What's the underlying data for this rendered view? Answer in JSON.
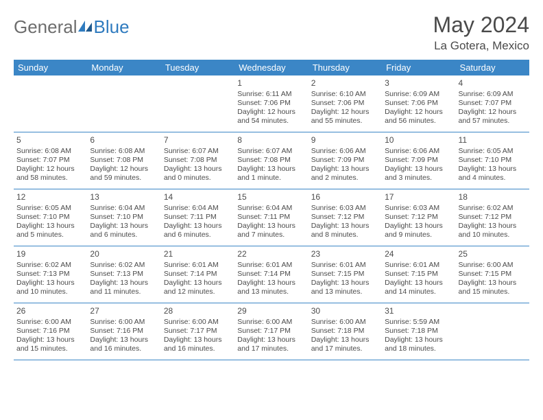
{
  "colors": {
    "header_bg": "#3b86c6",
    "header_text": "#ffffff",
    "border": "#3b86c6",
    "text": "#4a4a4a",
    "logo_gray": "#6d6d6d",
    "logo_blue": "#2f7bbf",
    "background": "#ffffff"
  },
  "typography": {
    "title_fontsize": 32,
    "location_fontsize": 17,
    "dow_fontsize": 13,
    "daynum_fontsize": 12,
    "body_fontsize": 10.5
  },
  "logo": {
    "text1": "General",
    "text2": "Blue"
  },
  "title": "May 2024",
  "location": "La Gotera, Mexico",
  "dow": [
    "Sunday",
    "Monday",
    "Tuesday",
    "Wednesday",
    "Thursday",
    "Friday",
    "Saturday"
  ],
  "weeks": [
    [
      {
        "n": "",
        "lines": []
      },
      {
        "n": "",
        "lines": []
      },
      {
        "n": "",
        "lines": []
      },
      {
        "n": "1",
        "lines": [
          "Sunrise: 6:11 AM",
          "Sunset: 7:06 PM",
          "Daylight: 12 hours and 54 minutes."
        ]
      },
      {
        "n": "2",
        "lines": [
          "Sunrise: 6:10 AM",
          "Sunset: 7:06 PM",
          "Daylight: 12 hours and 55 minutes."
        ]
      },
      {
        "n": "3",
        "lines": [
          "Sunrise: 6:09 AM",
          "Sunset: 7:06 PM",
          "Daylight: 12 hours and 56 minutes."
        ]
      },
      {
        "n": "4",
        "lines": [
          "Sunrise: 6:09 AM",
          "Sunset: 7:07 PM",
          "Daylight: 12 hours and 57 minutes."
        ]
      }
    ],
    [
      {
        "n": "5",
        "lines": [
          "Sunrise: 6:08 AM",
          "Sunset: 7:07 PM",
          "Daylight: 12 hours and 58 minutes."
        ]
      },
      {
        "n": "6",
        "lines": [
          "Sunrise: 6:08 AM",
          "Sunset: 7:08 PM",
          "Daylight: 12 hours and 59 minutes."
        ]
      },
      {
        "n": "7",
        "lines": [
          "Sunrise: 6:07 AM",
          "Sunset: 7:08 PM",
          "Daylight: 13 hours and 0 minutes."
        ]
      },
      {
        "n": "8",
        "lines": [
          "Sunrise: 6:07 AM",
          "Sunset: 7:08 PM",
          "Daylight: 13 hours and 1 minute."
        ]
      },
      {
        "n": "9",
        "lines": [
          "Sunrise: 6:06 AM",
          "Sunset: 7:09 PM",
          "Daylight: 13 hours and 2 minutes."
        ]
      },
      {
        "n": "10",
        "lines": [
          "Sunrise: 6:06 AM",
          "Sunset: 7:09 PM",
          "Daylight: 13 hours and 3 minutes."
        ]
      },
      {
        "n": "11",
        "lines": [
          "Sunrise: 6:05 AM",
          "Sunset: 7:10 PM",
          "Daylight: 13 hours and 4 minutes."
        ]
      }
    ],
    [
      {
        "n": "12",
        "lines": [
          "Sunrise: 6:05 AM",
          "Sunset: 7:10 PM",
          "Daylight: 13 hours and 5 minutes."
        ]
      },
      {
        "n": "13",
        "lines": [
          "Sunrise: 6:04 AM",
          "Sunset: 7:10 PM",
          "Daylight: 13 hours and 6 minutes."
        ]
      },
      {
        "n": "14",
        "lines": [
          "Sunrise: 6:04 AM",
          "Sunset: 7:11 PM",
          "Daylight: 13 hours and 6 minutes."
        ]
      },
      {
        "n": "15",
        "lines": [
          "Sunrise: 6:04 AM",
          "Sunset: 7:11 PM",
          "Daylight: 13 hours and 7 minutes."
        ]
      },
      {
        "n": "16",
        "lines": [
          "Sunrise: 6:03 AM",
          "Sunset: 7:12 PM",
          "Daylight: 13 hours and 8 minutes."
        ]
      },
      {
        "n": "17",
        "lines": [
          "Sunrise: 6:03 AM",
          "Sunset: 7:12 PM",
          "Daylight: 13 hours and 9 minutes."
        ]
      },
      {
        "n": "18",
        "lines": [
          "Sunrise: 6:02 AM",
          "Sunset: 7:12 PM",
          "Daylight: 13 hours and 10 minutes."
        ]
      }
    ],
    [
      {
        "n": "19",
        "lines": [
          "Sunrise: 6:02 AM",
          "Sunset: 7:13 PM",
          "Daylight: 13 hours and 10 minutes."
        ]
      },
      {
        "n": "20",
        "lines": [
          "Sunrise: 6:02 AM",
          "Sunset: 7:13 PM",
          "Daylight: 13 hours and 11 minutes."
        ]
      },
      {
        "n": "21",
        "lines": [
          "Sunrise: 6:01 AM",
          "Sunset: 7:14 PM",
          "Daylight: 13 hours and 12 minutes."
        ]
      },
      {
        "n": "22",
        "lines": [
          "Sunrise: 6:01 AM",
          "Sunset: 7:14 PM",
          "Daylight: 13 hours and 13 minutes."
        ]
      },
      {
        "n": "23",
        "lines": [
          "Sunrise: 6:01 AM",
          "Sunset: 7:15 PM",
          "Daylight: 13 hours and 13 minutes."
        ]
      },
      {
        "n": "24",
        "lines": [
          "Sunrise: 6:01 AM",
          "Sunset: 7:15 PM",
          "Daylight: 13 hours and 14 minutes."
        ]
      },
      {
        "n": "25",
        "lines": [
          "Sunrise: 6:00 AM",
          "Sunset: 7:15 PM",
          "Daylight: 13 hours and 15 minutes."
        ]
      }
    ],
    [
      {
        "n": "26",
        "lines": [
          "Sunrise: 6:00 AM",
          "Sunset: 7:16 PM",
          "Daylight: 13 hours and 15 minutes."
        ]
      },
      {
        "n": "27",
        "lines": [
          "Sunrise: 6:00 AM",
          "Sunset: 7:16 PM",
          "Daylight: 13 hours and 16 minutes."
        ]
      },
      {
        "n": "28",
        "lines": [
          "Sunrise: 6:00 AM",
          "Sunset: 7:17 PM",
          "Daylight: 13 hours and 16 minutes."
        ]
      },
      {
        "n": "29",
        "lines": [
          "Sunrise: 6:00 AM",
          "Sunset: 7:17 PM",
          "Daylight: 13 hours and 17 minutes."
        ]
      },
      {
        "n": "30",
        "lines": [
          "Sunrise: 6:00 AM",
          "Sunset: 7:18 PM",
          "Daylight: 13 hours and 17 minutes."
        ]
      },
      {
        "n": "31",
        "lines": [
          "Sunrise: 5:59 AM",
          "Sunset: 7:18 PM",
          "Daylight: 13 hours and 18 minutes."
        ]
      },
      {
        "n": "",
        "lines": []
      }
    ]
  ]
}
